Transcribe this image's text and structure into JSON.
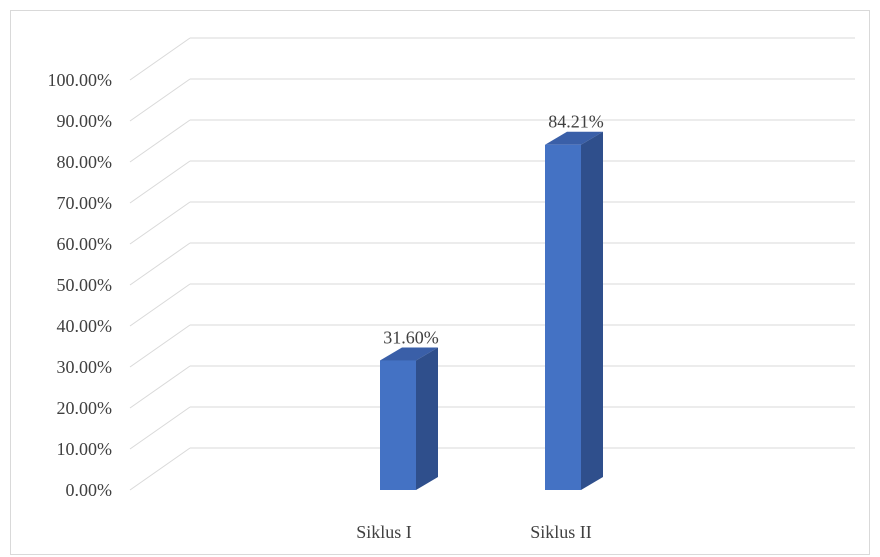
{
  "chart_data": {
    "type": "bar",
    "categories": [
      "Siklus I",
      "Siklus II"
    ],
    "values": [
      31.6,
      84.21
    ],
    "data_labels": [
      "31.60%",
      "84.21%"
    ],
    "title": "",
    "xlabel": "",
    "ylabel": "",
    "ylim": [
      0,
      100
    ],
    "yticks": [
      "0.00%",
      "10.00%",
      "20.00%",
      "30.00%",
      "40.00%",
      "50.00%",
      "60.00%",
      "70.00%",
      "80.00%",
      "90.00%",
      "100.00%"
    ],
    "style": "3d-column",
    "grid": true,
    "colors": {
      "front": "#4472c4",
      "side": "#2f4f8c",
      "top": "#3a5fa8",
      "grid": "#d9d9d9"
    }
  }
}
